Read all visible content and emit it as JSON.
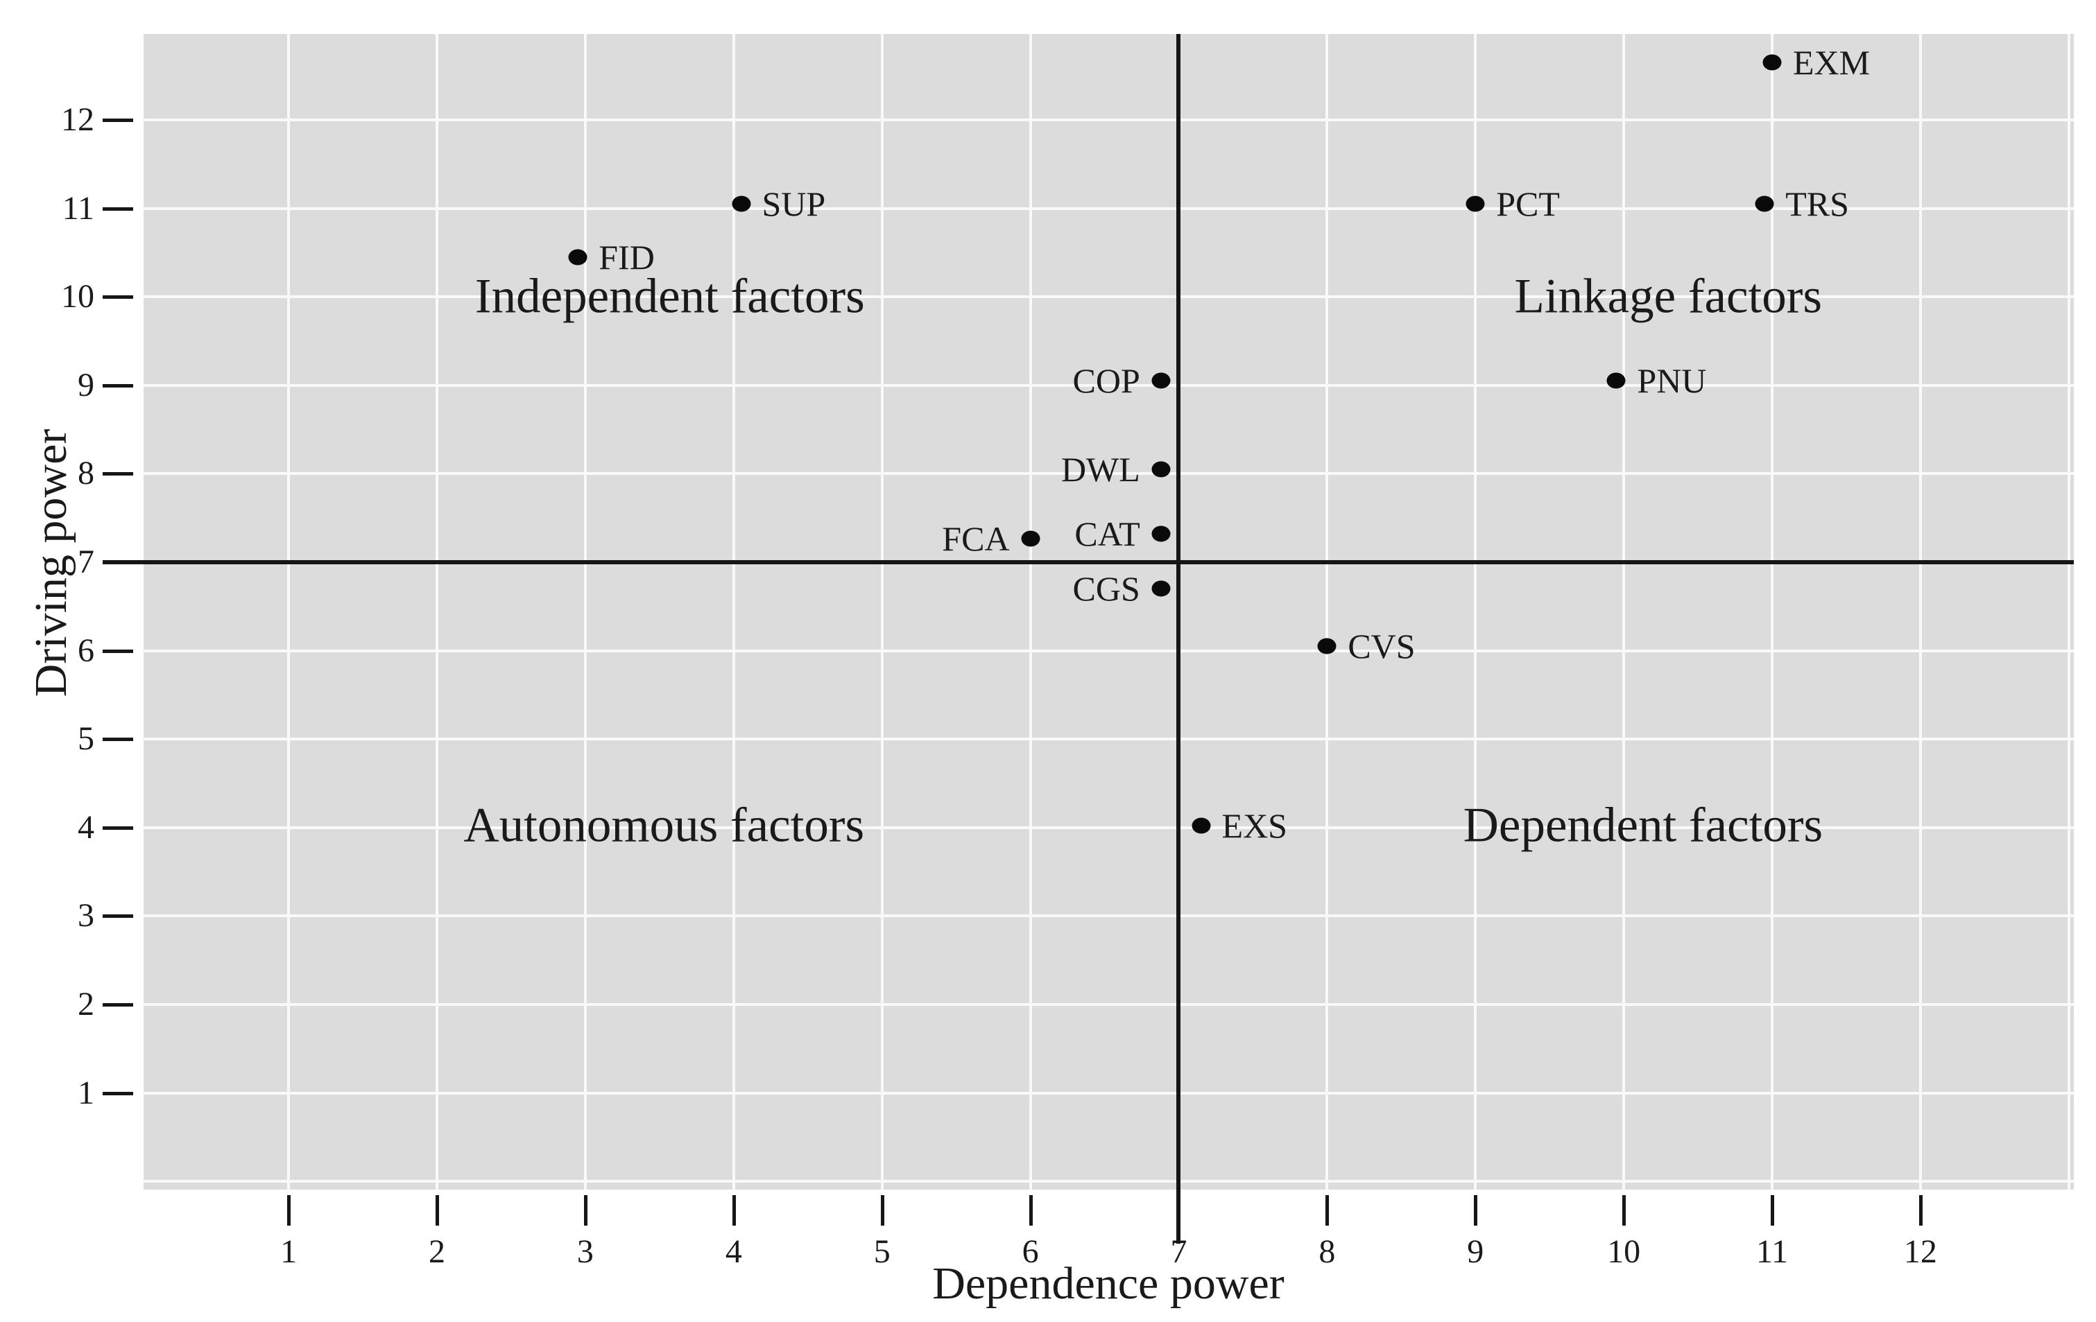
{
  "chart_data": {
    "type": "scatter",
    "title": "",
    "xlabel": "Dependence power",
    "ylabel": "Driving power",
    "xlim": [
      0.022,
      13.034
    ],
    "ylim": [
      -0.093,
      12.972
    ],
    "x_ticks": [
      1,
      2,
      3,
      4,
      5,
      6,
      7,
      8,
      9,
      10,
      11,
      12
    ],
    "y_ticks": [
      1,
      2,
      3,
      4,
      5,
      6,
      7,
      8,
      9,
      10,
      11,
      12
    ],
    "x_gridlines": [
      1,
      2,
      3,
      4,
      5,
      6,
      7,
      8,
      9,
      10,
      11,
      12,
      13
    ],
    "y_gridlines": [
      0,
      1,
      2,
      3,
      4,
      5,
      6,
      7,
      8,
      9,
      10,
      11,
      12
    ],
    "grid": true,
    "legend": "none",
    "divider_x": 7,
    "divider_y": 7,
    "points": [
      {
        "label": "EXM",
        "x": 11.0,
        "y": 12.65,
        "label_side": "right"
      },
      {
        "label": "SUP",
        "x": 4.05,
        "y": 11.05,
        "label_side": "right"
      },
      {
        "label": "FID",
        "x": 2.95,
        "y": 10.45,
        "label_side": "right"
      },
      {
        "label": "PCT",
        "x": 9.0,
        "y": 11.05,
        "label_side": "right"
      },
      {
        "label": "TRS",
        "x": 10.95,
        "y": 11.05,
        "label_side": "right"
      },
      {
        "label": "COP",
        "x": 6.88,
        "y": 9.05,
        "label_side": "left"
      },
      {
        "label": "PNU",
        "x": 9.95,
        "y": 9.05,
        "label_side": "right"
      },
      {
        "label": "DWL",
        "x": 6.88,
        "y": 8.05,
        "label_side": "left"
      },
      {
        "label": "FCA",
        "x": 6.0,
        "y": 7.27,
        "label_side": "left"
      },
      {
        "label": "CAT",
        "x": 6.88,
        "y": 7.32,
        "label_side": "left"
      },
      {
        "label": "CGS",
        "x": 6.88,
        "y": 6.7,
        "label_side": "left"
      },
      {
        "label": "CVS",
        "x": 8.0,
        "y": 6.05,
        "label_side": "right"
      },
      {
        "label": "EXS",
        "x": 7.15,
        "y": 4.02,
        "label_side": "right"
      }
    ],
    "quadrant_labels": [
      {
        "text": "Independent factors",
        "x": 3.57,
        "y": 10.0
      },
      {
        "text": "Linkage factors",
        "x": 10.3,
        "y": 10.0
      },
      {
        "text": "Autonomous factors",
        "x": 3.53,
        "y": 4.02
      },
      {
        "text": "Dependent factors",
        "x": 10.13,
        "y": 4.02
      }
    ],
    "colors": {
      "page_bg": "#ffffff",
      "plot_bg": "#dcdcdc",
      "gridline": "#f9f9f9",
      "divider": "#161616",
      "dot": "#0a0a0a",
      "text": "#1a1a1a"
    }
  }
}
